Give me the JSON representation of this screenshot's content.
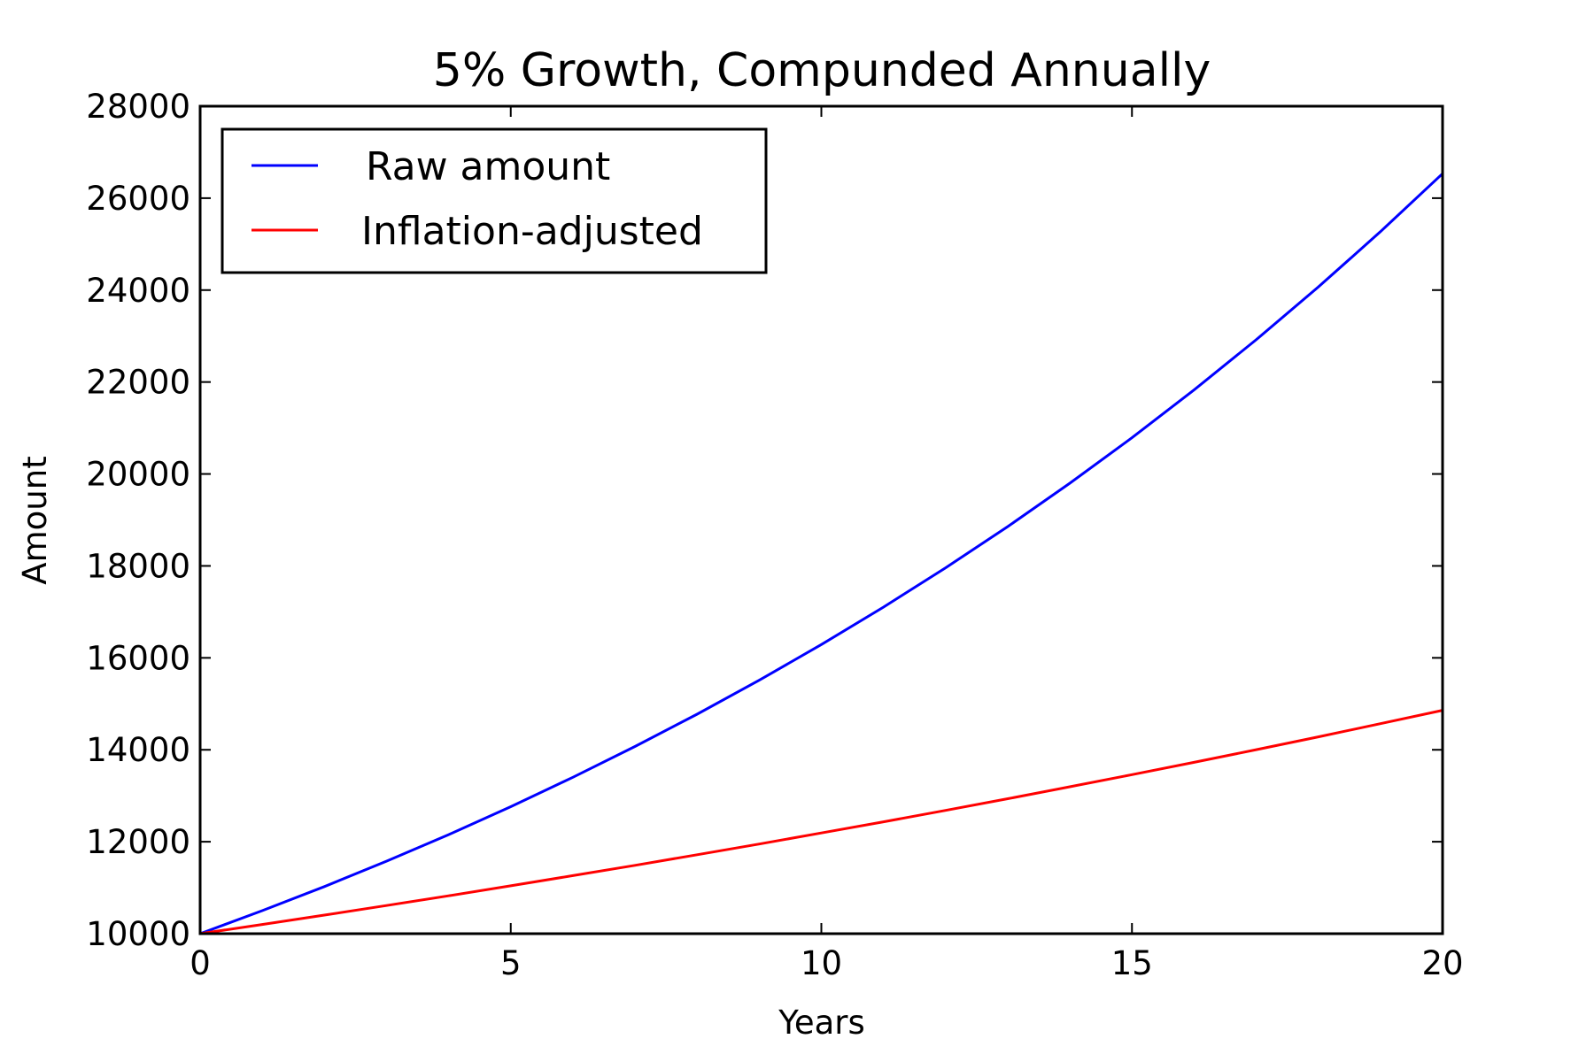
{
  "chart_data": {
    "type": "line",
    "title": "5% Growth, Compunded Annually",
    "xlabel": "Years",
    "ylabel": "Amount",
    "xlim": [
      0,
      20
    ],
    "ylim": [
      10000,
      28000
    ],
    "xticks": [
      0,
      5,
      10,
      15,
      20
    ],
    "xtick_labels": [
      "0",
      "5",
      "10",
      "15",
      "20"
    ],
    "yticks": [
      10000,
      12000,
      14000,
      16000,
      18000,
      20000,
      22000,
      24000,
      26000,
      28000
    ],
    "ytick_labels": [
      "10000",
      "12000",
      "14000",
      "16000",
      "18000",
      "20000",
      "22000",
      "24000",
      "26000",
      "28000"
    ],
    "grid": false,
    "legend_position": "upper-left",
    "x": [
      0,
      1,
      2,
      3,
      4,
      5,
      6,
      7,
      8,
      9,
      10,
      11,
      12,
      13,
      14,
      15,
      16,
      17,
      18,
      19,
      20
    ],
    "series": [
      {
        "name": "Raw amount",
        "color": "#0000ff",
        "values": [
          10000,
          10500,
          11025,
          11576,
          12155,
          12763,
          13401,
          14071,
          14775,
          15513,
          16289,
          17103,
          17959,
          18856,
          19799,
          20789,
          21829,
          22920,
          24066,
          25270,
          26533
        ]
      },
      {
        "name": "Inflation-adjusted",
        "color": "#ff0000",
        "values": [
          10000,
          10200,
          10404,
          10612,
          10824,
          11041,
          11262,
          11487,
          11717,
          11951,
          12190,
          12434,
          12682,
          12936,
          13195,
          13459,
          13728,
          14002,
          14282,
          14568,
          14859
        ]
      }
    ]
  }
}
